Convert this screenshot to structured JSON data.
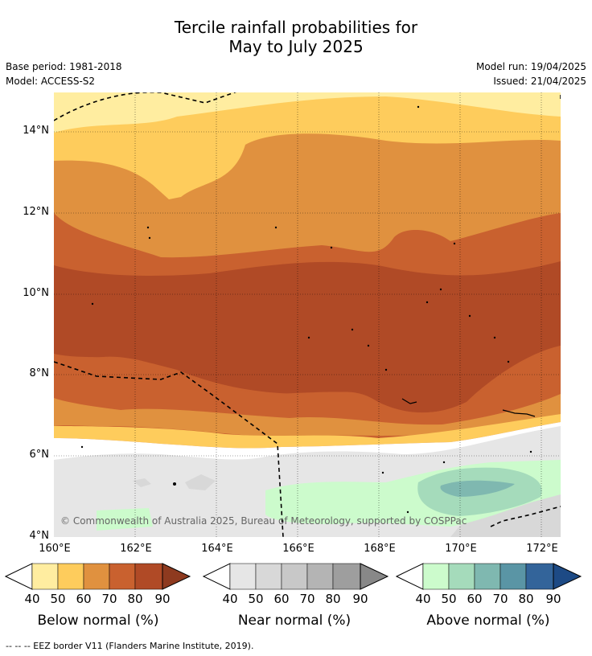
{
  "title": {
    "line1": "Tercile rainfall probabilities for",
    "line2": "May to July 2025"
  },
  "meta": {
    "base_period": "Base period: 1981-2018",
    "model": "Model: ACCESS-S2",
    "model_run": "Model run: 19/04/2025",
    "issued": "Issued: 21/04/2025"
  },
  "map": {
    "lat_labels": [
      "14°N",
      "12°N",
      "10°N",
      "8°N",
      "6°N",
      "4°N"
    ],
    "lon_labels": [
      "160°E",
      "162°E",
      "164°E",
      "166°E",
      "168°E",
      "170°E",
      "172°E"
    ],
    "copyright": "© Commonwealth of Australia 2025, Bureau of Meteorology, supported by COSPPac"
  },
  "colorbars": [
    {
      "label": "Below normal (%)",
      "ticks": [
        "40",
        "50",
        "60",
        "70",
        "80",
        "90"
      ],
      "colors": [
        "#ffeda0",
        "#fecc5c",
        "#e0913f",
        "#c9612f",
        "#b04a26",
        "#8e3a1f"
      ]
    },
    {
      "label": "Near normal (%)",
      "ticks": [
        "40",
        "50",
        "60",
        "70",
        "80",
        "90"
      ],
      "colors": [
        "#e6e6e6",
        "#d8d8d8",
        "#c8c8c8",
        "#b4b4b4",
        "#9e9e9e",
        "#888888"
      ]
    },
    {
      "label": "Above normal (%)",
      "ticks": [
        "40",
        "50",
        "60",
        "70",
        "80",
        "90"
      ],
      "colors": [
        "#ccfbcc",
        "#a5dbbb",
        "#7fb8b0",
        "#5a95a5",
        "#33649a",
        "#1d4a85"
      ]
    }
  ],
  "footer": "--  --  -- EEZ border V11 (Flanders Marine Institute, 2019)."
}
